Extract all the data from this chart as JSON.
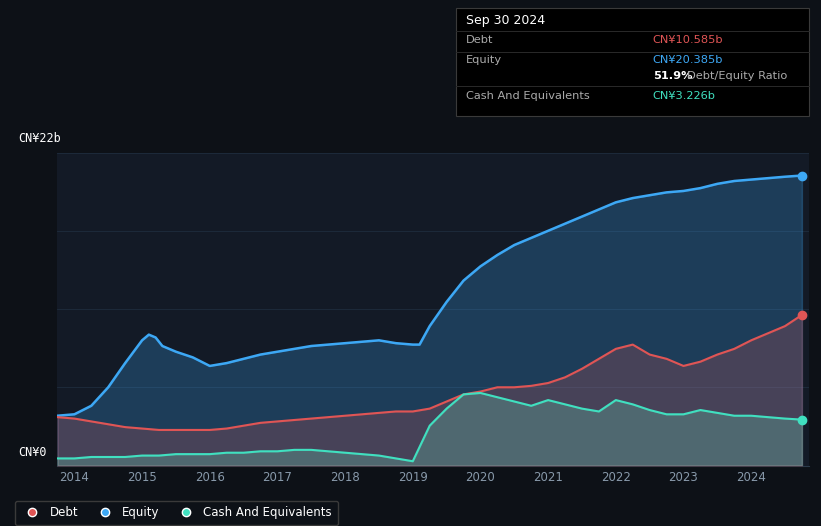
{
  "bg_color": "#0d1117",
  "plot_bg_color": "#131a26",
  "title_label": "CN¥22b",
  "zero_label": "CN¥0",
  "x_ticks": [
    2014,
    2015,
    2016,
    2017,
    2018,
    2019,
    2020,
    2021,
    2022,
    2023,
    2024
  ],
  "y_min": 0,
  "y_max": 22,
  "debt_color": "#e05555",
  "equity_color": "#3da8f5",
  "cash_color": "#40e0c0",
  "tooltip_bg": "#000000",
  "tooltip_title": "Sep 30 2024",
  "tooltip_debt_label": "Debt",
  "tooltip_debt_value": "CN¥10.585b",
  "tooltip_equity_label": "Equity",
  "tooltip_equity_value": "CN¥20.385b",
  "tooltip_ratio_bold": "51.9%",
  "tooltip_ratio_text": "Debt/Equity Ratio",
  "tooltip_cash_label": "Cash And Equivalents",
  "tooltip_cash_value": "CN¥3.226b",
  "legend_debt": "Debt",
  "legend_equity": "Equity",
  "legend_cash": "Cash And Equivalents",
  "equity_data": [
    [
      2013.75,
      3.5
    ],
    [
      2014.0,
      3.6
    ],
    [
      2014.25,
      4.2
    ],
    [
      2014.5,
      5.5
    ],
    [
      2014.75,
      7.2
    ],
    [
      2015.0,
      8.8
    ],
    [
      2015.1,
      9.2
    ],
    [
      2015.2,
      9.0
    ],
    [
      2015.3,
      8.4
    ],
    [
      2015.5,
      8.0
    ],
    [
      2015.75,
      7.6
    ],
    [
      2016.0,
      7.0
    ],
    [
      2016.25,
      7.2
    ],
    [
      2016.5,
      7.5
    ],
    [
      2016.75,
      7.8
    ],
    [
      2017.0,
      8.0
    ],
    [
      2017.25,
      8.2
    ],
    [
      2017.5,
      8.4
    ],
    [
      2017.75,
      8.5
    ],
    [
      2018.0,
      8.6
    ],
    [
      2018.25,
      8.7
    ],
    [
      2018.5,
      8.8
    ],
    [
      2018.75,
      8.6
    ],
    [
      2019.0,
      8.5
    ],
    [
      2019.1,
      8.5
    ],
    [
      2019.25,
      9.8
    ],
    [
      2019.5,
      11.5
    ],
    [
      2019.75,
      13.0
    ],
    [
      2020.0,
      14.0
    ],
    [
      2020.25,
      14.8
    ],
    [
      2020.5,
      15.5
    ],
    [
      2020.75,
      16.0
    ],
    [
      2021.0,
      16.5
    ],
    [
      2021.25,
      17.0
    ],
    [
      2021.5,
      17.5
    ],
    [
      2021.75,
      18.0
    ],
    [
      2022.0,
      18.5
    ],
    [
      2022.25,
      18.8
    ],
    [
      2022.5,
      19.0
    ],
    [
      2022.75,
      19.2
    ],
    [
      2023.0,
      19.3
    ],
    [
      2023.25,
      19.5
    ],
    [
      2023.5,
      19.8
    ],
    [
      2023.75,
      20.0
    ],
    [
      2024.0,
      20.1
    ],
    [
      2024.25,
      20.2
    ],
    [
      2024.5,
      20.3
    ],
    [
      2024.75,
      20.385
    ]
  ],
  "debt_data": [
    [
      2013.75,
      3.4
    ],
    [
      2014.0,
      3.3
    ],
    [
      2014.25,
      3.1
    ],
    [
      2014.5,
      2.9
    ],
    [
      2014.75,
      2.7
    ],
    [
      2015.0,
      2.6
    ],
    [
      2015.25,
      2.5
    ],
    [
      2015.5,
      2.5
    ],
    [
      2015.75,
      2.5
    ],
    [
      2016.0,
      2.5
    ],
    [
      2016.25,
      2.6
    ],
    [
      2016.5,
      2.8
    ],
    [
      2016.75,
      3.0
    ],
    [
      2017.0,
      3.1
    ],
    [
      2017.25,
      3.2
    ],
    [
      2017.5,
      3.3
    ],
    [
      2017.75,
      3.4
    ],
    [
      2018.0,
      3.5
    ],
    [
      2018.25,
      3.6
    ],
    [
      2018.5,
      3.7
    ],
    [
      2018.75,
      3.8
    ],
    [
      2019.0,
      3.8
    ],
    [
      2019.25,
      4.0
    ],
    [
      2019.5,
      4.5
    ],
    [
      2019.75,
      5.0
    ],
    [
      2020.0,
      5.2
    ],
    [
      2020.25,
      5.5
    ],
    [
      2020.5,
      5.5
    ],
    [
      2020.75,
      5.6
    ],
    [
      2021.0,
      5.8
    ],
    [
      2021.25,
      6.2
    ],
    [
      2021.5,
      6.8
    ],
    [
      2021.75,
      7.5
    ],
    [
      2022.0,
      8.2
    ],
    [
      2022.25,
      8.5
    ],
    [
      2022.5,
      7.8
    ],
    [
      2022.75,
      7.5
    ],
    [
      2023.0,
      7.0
    ],
    [
      2023.25,
      7.3
    ],
    [
      2023.5,
      7.8
    ],
    [
      2023.75,
      8.2
    ],
    [
      2024.0,
      8.8
    ],
    [
      2024.25,
      9.3
    ],
    [
      2024.5,
      9.8
    ],
    [
      2024.75,
      10.585
    ]
  ],
  "cash_data": [
    [
      2013.75,
      0.5
    ],
    [
      2014.0,
      0.5
    ],
    [
      2014.25,
      0.6
    ],
    [
      2014.5,
      0.6
    ],
    [
      2014.75,
      0.6
    ],
    [
      2015.0,
      0.7
    ],
    [
      2015.25,
      0.7
    ],
    [
      2015.5,
      0.8
    ],
    [
      2015.75,
      0.8
    ],
    [
      2016.0,
      0.8
    ],
    [
      2016.25,
      0.9
    ],
    [
      2016.5,
      0.9
    ],
    [
      2016.75,
      1.0
    ],
    [
      2017.0,
      1.0
    ],
    [
      2017.25,
      1.1
    ],
    [
      2017.5,
      1.1
    ],
    [
      2017.75,
      1.0
    ],
    [
      2018.0,
      0.9
    ],
    [
      2018.25,
      0.8
    ],
    [
      2018.5,
      0.7
    ],
    [
      2018.75,
      0.5
    ],
    [
      2019.0,
      0.3
    ],
    [
      2019.25,
      2.8
    ],
    [
      2019.5,
      4.0
    ],
    [
      2019.75,
      5.0
    ],
    [
      2020.0,
      5.1
    ],
    [
      2020.25,
      4.8
    ],
    [
      2020.5,
      4.5
    ],
    [
      2020.75,
      4.2
    ],
    [
      2021.0,
      4.6
    ],
    [
      2021.25,
      4.3
    ],
    [
      2021.5,
      4.0
    ],
    [
      2021.75,
      3.8
    ],
    [
      2022.0,
      4.6
    ],
    [
      2022.25,
      4.3
    ],
    [
      2022.5,
      3.9
    ],
    [
      2022.75,
      3.6
    ],
    [
      2023.0,
      3.6
    ],
    [
      2023.25,
      3.9
    ],
    [
      2023.5,
      3.7
    ],
    [
      2023.75,
      3.5
    ],
    [
      2024.0,
      3.5
    ],
    [
      2024.25,
      3.4
    ],
    [
      2024.5,
      3.3
    ],
    [
      2024.75,
      3.226
    ]
  ]
}
